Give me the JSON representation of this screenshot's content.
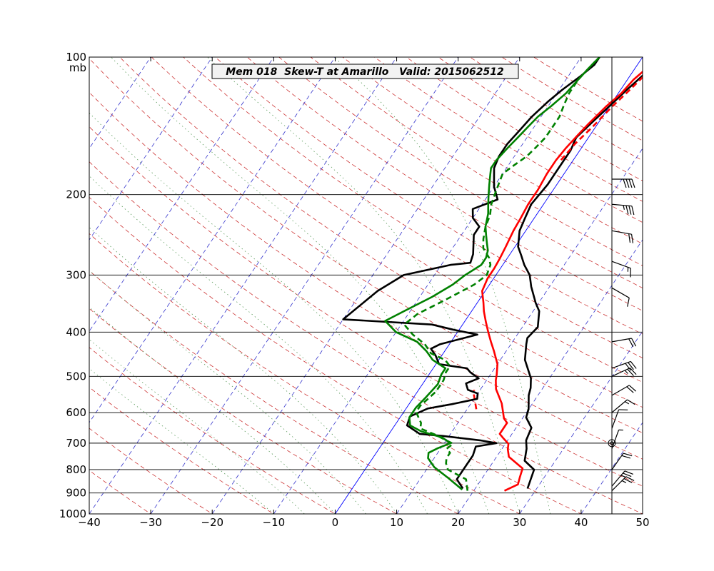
{
  "chart_data": {
    "type": "line",
    "title": "Mem 018  Skew-T at Amarillo   Valid: 2015062512",
    "ylabel": "mb",
    "xlim": [
      -40,
      50
    ],
    "ylim": [
      1000,
      100
    ],
    "x_ticks": [
      "−40",
      "−30",
      "−20",
      "−10",
      "0",
      "10",
      "20",
      "30",
      "40",
      "50"
    ],
    "y_ticks": [
      "100",
      "200",
      "300",
      "400",
      "500",
      "600",
      "700",
      "800",
      "900",
      "1000"
    ],
    "y_tick_values": [
      100,
      200,
      300,
      400,
      500,
      600,
      700,
      800,
      900,
      1000
    ],
    "colors": {
      "temperature_obs": "#000000",
      "temperature_fcst": "#ff0000",
      "dewpoint": "#008000",
      "dry_adiabat": "#cc3333",
      "moist_adiabat": "#5a9a5a",
      "isotherm": "#3333cc",
      "isotherm_zero": "#0000ff"
    },
    "series": [
      {
        "kind": "temperature_obs",
        "points": [
          [
            28.5,
            880
          ],
          [
            27.5,
            800
          ],
          [
            25,
            765
          ],
          [
            24,
            720
          ],
          [
            23,
            690
          ],
          [
            22.5,
            648
          ],
          [
            20.5,
            615
          ],
          [
            20,
            590
          ],
          [
            18.5,
            550
          ],
          [
            18,
            530
          ],
          [
            17,
            505
          ],
          [
            14,
            460
          ],
          [
            12.5,
            425
          ],
          [
            12,
            412
          ],
          [
            12.5,
            390
          ],
          [
            11,
            360
          ],
          [
            9.5,
            345
          ],
          [
            7,
            318
          ],
          [
            5.5,
            300
          ],
          [
            3.5,
            285
          ],
          [
            2,
            272
          ],
          [
            0.5,
            260
          ],
          [
            -1,
            240
          ],
          [
            -1.5,
            225
          ],
          [
            -2,
            210
          ],
          [
            -1.5,
            190
          ],
          [
            -1.5,
            175
          ],
          [
            -1.5,
            160
          ],
          [
            -2,
            150
          ],
          [
            -1,
            138
          ],
          [
            0,
            128
          ],
          [
            1,
            118
          ],
          [
            2,
            110
          ],
          [
            2.5,
            104
          ],
          [
            2.5,
            100
          ]
        ]
      },
      {
        "kind": "temperature_fcst",
        "points": [
          [
            25,
            890
          ],
          [
            26.5,
            862
          ],
          [
            26,
            830
          ],
          [
            25.5,
            795
          ],
          [
            22,
            750
          ],
          [
            21,
            722
          ],
          [
            20.5,
            702
          ],
          [
            19,
            682
          ],
          [
            18,
            668
          ],
          [
            18,
            632
          ],
          [
            17,
            618
          ],
          [
            16,
            595
          ],
          [
            15,
            573
          ],
          [
            12.5,
            533
          ],
          [
            11.5,
            510
          ],
          [
            11,
            495
          ],
          [
            10,
            470
          ],
          [
            8,
            440
          ],
          [
            6.5,
            420
          ],
          [
            5,
            400
          ],
          [
            3.5,
            380
          ],
          [
            2,
            360
          ],
          [
            1,
            345
          ],
          [
            -0.5,
            325
          ],
          [
            -1,
            305
          ],
          [
            -1,
            290
          ],
          [
            -1.2,
            275
          ],
          [
            -1.5,
            260
          ],
          [
            -2,
            240
          ],
          [
            -2.2,
            225
          ],
          [
            -2.5,
            210
          ],
          [
            -2.5,
            195
          ],
          [
            -2.8,
            180
          ],
          [
            -2.8,
            168
          ],
          [
            -2.5,
            158
          ],
          [
            -2,
            148
          ],
          [
            -1.5,
            140
          ],
          [
            -0.5,
            128
          ],
          [
            0.5,
            120
          ],
          [
            1,
            112
          ],
          [
            2,
            105
          ],
          [
            2.5,
            100
          ]
        ]
      },
      {
        "kind": "temperature_fcst_dashed",
        "points": [
          [
            11.5,
            590
          ],
          [
            9.5,
            548
          ],
          [
            9,
            535
          ]
        ]
      },
      {
        "kind": "temperature_fcst_dashed",
        "points": [
          [
            -2,
            168
          ],
          [
            -1.5,
            155
          ],
          [
            -0.5,
            142
          ],
          [
            0.5,
            128
          ],
          [
            1.5,
            118
          ],
          [
            2.5,
            108
          ],
          [
            3,
            100
          ]
        ]
      },
      {
        "kind": "temperature_obs",
        "points": [
          [
            18,
            880
          ],
          [
            17.5,
            870
          ],
          [
            16,
            840
          ],
          [
            16,
            780
          ],
          [
            16,
            745
          ],
          [
            15.5,
            712
          ],
          [
            18.5,
            700
          ],
          [
            15.5,
            690
          ],
          [
            9,
            675
          ],
          [
            5,
            668
          ],
          [
            2,
            640
          ],
          [
            1.5,
            612
          ],
          [
            3.5,
            588
          ],
          [
            7,
            575
          ],
          [
            10.5,
            560
          ],
          [
            10,
            545
          ],
          [
            8,
            535
          ],
          [
            7,
            518
          ],
          [
            8.5,
            505
          ],
          [
            6.5,
            490
          ],
          [
            5.5,
            480
          ],
          [
            3,
            475
          ],
          [
            0.5,
            470
          ],
          [
            -1,
            450
          ],
          [
            -2.5,
            435
          ],
          [
            -1.5,
            425
          ],
          [
            3.5,
            405
          ],
          [
            -1,
            395
          ],
          [
            -5,
            385
          ],
          [
            -20,
            375
          ],
          [
            -17.5,
            325
          ],
          [
            -15,
            300
          ],
          [
            -8.5,
            285
          ],
          [
            -5.5,
            282
          ],
          [
            -6,
            270
          ],
          [
            -8,
            245
          ],
          [
            -8,
            235
          ],
          [
            -10,
            225
          ],
          [
            -11,
            215
          ],
          [
            -8,
            205
          ],
          [
            -10,
            192
          ],
          [
            -12,
            175
          ],
          [
            -12.5,
            165
          ],
          [
            -12.5,
            155
          ],
          [
            -12,
            145
          ],
          [
            -11.5,
            135
          ],
          [
            -10.5,
            125
          ],
          [
            -9.5,
            118
          ],
          [
            -8,
            110
          ],
          [
            -7,
            104
          ],
          [
            -7,
            100
          ]
        ]
      },
      {
        "kind": "dewpoint",
        "points": [
          [
            18,
            885
          ],
          [
            14.5,
            835
          ],
          [
            11,
            790
          ],
          [
            9,
            755
          ],
          [
            8.5,
            735
          ],
          [
            9.5,
            718
          ],
          [
            11,
            700
          ],
          [
            9,
            680
          ],
          [
            5,
            660
          ],
          [
            2.5,
            640
          ],
          [
            1.5,
            615
          ],
          [
            1.5,
            598
          ],
          [
            1.5,
            585
          ],
          [
            2,
            555
          ],
          [
            2.5,
            520
          ],
          [
            2,
            495
          ],
          [
            2,
            480
          ],
          [
            -1,
            460
          ],
          [
            -3,
            440
          ],
          [
            -5.5,
            420
          ],
          [
            -10,
            400
          ],
          [
            -13,
            378
          ],
          [
            -11,
            360
          ],
          [
            -8,
            335
          ],
          [
            -6,
            315
          ],
          [
            -5,
            300
          ],
          [
            -3.5,
            285
          ],
          [
            -3.5,
            275
          ],
          [
            -4,
            265
          ],
          [
            -5,
            255
          ],
          [
            -6,
            245
          ],
          [
            -7,
            235
          ],
          [
            -8,
            220
          ],
          [
            -9,
            210
          ],
          [
            -10,
            200
          ],
          [
            -11,
            190
          ],
          [
            -12,
            180
          ],
          [
            -12.5,
            175
          ],
          [
            -12.5,
            168
          ],
          [
            -12,
            158
          ],
          [
            -11.5,
            150
          ],
          [
            -11,
            142
          ],
          [
            -10.5,
            135
          ],
          [
            -9.5,
            128
          ],
          [
            -8.5,
            120
          ],
          [
            -8,
            112
          ],
          [
            -7.5,
            105
          ],
          [
            -7,
            100
          ]
        ]
      },
      {
        "kind": "dewpoint_dashed",
        "points": [
          [
            19,
            890
          ],
          [
            17.5,
            840
          ],
          [
            13.5,
            800
          ],
          [
            12.5,
            775
          ],
          [
            12,
            755
          ],
          [
            12,
            735
          ],
          [
            11,
            720
          ],
          [
            11.5,
            702
          ],
          [
            10,
            690
          ],
          [
            7.5,
            670
          ],
          [
            4.5,
            650
          ],
          [
            4,
            632
          ],
          [
            3,
            615
          ],
          [
            2,
            598
          ],
          [
            2,
            580
          ],
          [
            2.5,
            560
          ],
          [
            3,
            540
          ],
          [
            3,
            510
          ],
          [
            2.5,
            490
          ],
          [
            2.5,
            475
          ],
          [
            1,
            460
          ],
          [
            -2,
            445
          ],
          [
            -4,
            425
          ],
          [
            -7,
            405
          ],
          [
            -9.5,
            385
          ],
          [
            -8.5,
            365
          ],
          [
            -5.5,
            340
          ],
          [
            -2.5,
            315
          ],
          [
            -1.5,
            300
          ],
          [
            -2,
            285
          ],
          [
            -3,
            275
          ],
          [
            -5,
            262
          ],
          [
            -6,
            250
          ],
          [
            -7,
            235
          ],
          [
            -7.5,
            222
          ],
          [
            -8.5,
            210
          ],
          [
            -9,
            200
          ],
          [
            -9.5,
            190
          ],
          [
            -10,
            180
          ],
          [
            -9,
            172
          ],
          [
            -8,
            165
          ],
          [
            -7.5,
            158
          ],
          [
            -7,
            150
          ],
          [
            -7,
            142
          ],
          [
            -7,
            135
          ],
          [
            -7.5,
            128
          ],
          [
            -8,
            120
          ],
          [
            -8,
            112
          ],
          [
            -7.5,
            105
          ],
          [
            -7,
            100
          ]
        ]
      }
    ],
    "wind_barbs": [
      {
        "p": 890,
        "speed": 25,
        "dir": 225
      },
      {
        "p": 870,
        "speed": 25,
        "dir": 220
      },
      {
        "p": 800,
        "speed": 20,
        "dir": 215
      },
      {
        "p": 720,
        "speed": 5,
        "dir": 200
      },
      {
        "p": 700,
        "speed": 0,
        "dir": 0
      },
      {
        "p": 650,
        "speed": 10,
        "dir": 200
      },
      {
        "p": 600,
        "speed": 15,
        "dir": 230
      },
      {
        "p": 550,
        "speed": 20,
        "dir": 240
      },
      {
        "p": 500,
        "speed": 25,
        "dir": 245
      },
      {
        "p": 480,
        "speed": 30,
        "dir": 250
      },
      {
        "p": 420,
        "speed": 20,
        "dir": 260
      },
      {
        "p": 320,
        "speed": 10,
        "dir": 300
      },
      {
        "p": 280,
        "speed": 15,
        "dir": 290
      },
      {
        "p": 240,
        "speed": 20,
        "dir": 280
      },
      {
        "p": 210,
        "speed": 35,
        "dir": 275
      },
      {
        "p": 185,
        "speed": 40,
        "dir": 270
      }
    ]
  }
}
